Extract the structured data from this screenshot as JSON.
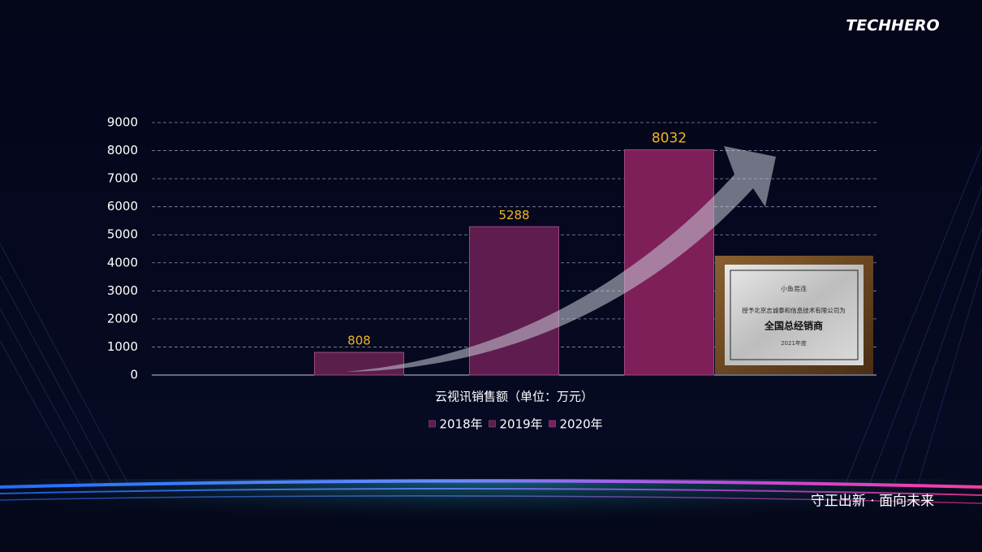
{
  "brand": "TECHHERO",
  "slogan": "守正出新 · 面向未来",
  "plaque": {
    "logo": "小鱼易连",
    "line1": "授予北京志诚泰和信息技术有限公司为",
    "line2": "全国总经销商",
    "line3": "2021年度"
  },
  "chart_data": {
    "type": "bar",
    "categories": [
      "云视讯销售额（单位：万元）"
    ],
    "series": [
      {
        "name": "2018年",
        "color": "#5b1f4b",
        "values": [
          808
        ]
      },
      {
        "name": "2019年",
        "color": "#5f1c4e",
        "values": [
          5288
        ]
      },
      {
        "name": "2020年",
        "color": "#7e1f5a",
        "values": [
          8032
        ]
      }
    ],
    "ylim": [
      0,
      9000
    ],
    "yticks": [
      0,
      1000,
      2000,
      3000,
      4000,
      5000,
      6000,
      7000,
      8000,
      9000
    ],
    "grid": true,
    "legend": "bottom"
  }
}
